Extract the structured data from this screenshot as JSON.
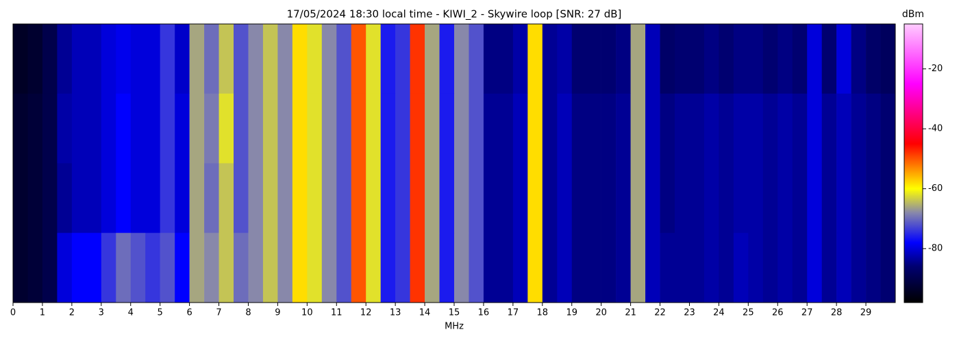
{
  "chart_data": {
    "type": "spectrogram",
    "title": "17/05/2024 18:30 local time - KIWI_2 - Skywire loop [SNR: 27 dB]",
    "xlabel": "MHz",
    "colorbar_label": "dBm",
    "bins": [
      0,
      0.5,
      1,
      1.5,
      2,
      2.5,
      3,
      3.5,
      4,
      4.5,
      5,
      5.5,
      6,
      6.5,
      7,
      7.5,
      8,
      8.5,
      9,
      9.5,
      10,
      10.5,
      11,
      11.5,
      12,
      12.5,
      13,
      13.5,
      14,
      14.5,
      15,
      15.5,
      16,
      16.5,
      17,
      17.5,
      18,
      18.5,
      19,
      19.5,
      20,
      20.5,
      21,
      21.5,
      22,
      22.5,
      23,
      23.5,
      24,
      24.5,
      25,
      25.5,
      26,
      26.5,
      27,
      27.5,
      28,
      28.5,
      29,
      29.5,
      30
    ],
    "xlim": [
      0,
      30
    ],
    "xticks": [
      0,
      1,
      2,
      3,
      4,
      5,
      6,
      7,
      8,
      9,
      10,
      11,
      12,
      13,
      14,
      15,
      16,
      17,
      18,
      19,
      20,
      21,
      22,
      23,
      24,
      25,
      26,
      27,
      28,
      29
    ],
    "z": [
      [
        -94,
        -93,
        -90,
        -84,
        -82,
        -82,
        -80,
        -79,
        -80,
        -80,
        -74,
        -81,
        -66,
        -70,
        -64,
        -72,
        -68,
        -64,
        -68,
        -58,
        -62,
        -68,
        -72,
        -50,
        -62,
        -76,
        -74,
        -48,
        -66,
        -76,
        -68,
        -72,
        -85,
        -85,
        -83,
        -58,
        -84,
        -83,
        -86,
        -86,
        -86,
        -85,
        -66,
        -82,
        -87,
        -86,
        -86,
        -85,
        -86,
        -85,
        -85,
        -86,
        -85,
        -86,
        -80,
        -86,
        -80,
        -85,
        -87,
        -88
      ],
      [
        -93,
        -92,
        -90,
        -83,
        -82,
        -82,
        -80,
        -78,
        -80,
        -80,
        -74,
        -80,
        -66,
        -69,
        -62,
        -72,
        -68,
        -64,
        -68,
        -58,
        -62,
        -68,
        -72,
        -50,
        -62,
        -76,
        -74,
        -48,
        -66,
        -76,
        -68,
        -72,
        -84,
        -84,
        -82,
        -58,
        -84,
        -82,
        -85,
        -85,
        -85,
        -84,
        -66,
        -82,
        -85,
        -84,
        -84,
        -83,
        -84,
        -83,
        -83,
        -84,
        -83,
        -84,
        -80,
        -84,
        -82,
        -84,
        -85,
        -86
      ],
      [
        -93,
        -92,
        -90,
        -84,
        -82,
        -82,
        -80,
        -78,
        -80,
        -80,
        -74,
        -80,
        -66,
        -70,
        -64,
        -72,
        -68,
        -64,
        -68,
        -58,
        -62,
        -68,
        -72,
        -50,
        -62,
        -76,
        -74,
        -48,
        -66,
        -76,
        -68,
        -72,
        -84,
        -84,
        -82,
        -58,
        -84,
        -82,
        -85,
        -85,
        -85,
        -84,
        -66,
        -82,
        -85,
        -84,
        -84,
        -83,
        -84,
        -83,
        -83,
        -84,
        -83,
        -84,
        -80,
        -84,
        -82,
        -84,
        -85,
        -86
      ],
      [
        -93,
        -92,
        -90,
        -80,
        -78,
        -78,
        -74,
        -70,
        -72,
        -74,
        -72,
        -78,
        -66,
        -68,
        -64,
        -70,
        -68,
        -64,
        -68,
        -58,
        -62,
        -68,
        -72,
        -50,
        -62,
        -76,
        -74,
        -48,
        -66,
        -76,
        -68,
        -72,
        -84,
        -84,
        -82,
        -58,
        -84,
        -82,
        -85,
        -85,
        -85,
        -84,
        -66,
        -82,
        -84,
        -84,
        -84,
        -83,
        -84,
        -82,
        -83,
        -84,
        -83,
        -84,
        -80,
        -84,
        -82,
        -84,
        -85,
        -86
      ]
    ],
    "clim": [
      -98,
      -5
    ],
    "cticks": [
      -80,
      -60,
      -40,
      -20
    ],
    "colormap": [
      {
        "value": -98,
        "color": "#000000"
      },
      {
        "value": -86,
        "color": "#000070"
      },
      {
        "value": -78,
        "color": "#0000ff"
      },
      {
        "value": -68,
        "color": "#8888aa"
      },
      {
        "value": -60,
        "color": "#ffff00"
      },
      {
        "value": -45,
        "color": "#ff0000"
      },
      {
        "value": -25,
        "color": "#ff00ff"
      },
      {
        "value": -5,
        "color": "#ffccff"
      }
    ]
  }
}
